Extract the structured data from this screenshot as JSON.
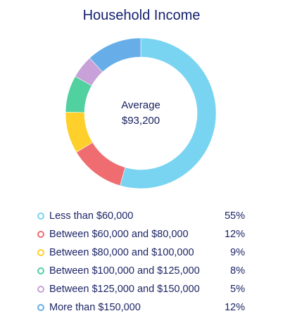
{
  "chart_data": {
    "type": "pie",
    "title": "Household Income",
    "center_label": {
      "title": "Average",
      "value": "$93,200"
    },
    "categories": [
      "Less than $60,000",
      "Between $60,000 and $80,000",
      "Between $80,000 and $100,000",
      "Between $100,000 and $125,000",
      "Between $125,000 and $150,000",
      "More than $150,000"
    ],
    "values": [
      55,
      12,
      9,
      8,
      5,
      12
    ],
    "value_labels": [
      "55%",
      "12%",
      "9%",
      "8%",
      "5%",
      "12%"
    ],
    "colors": [
      "#79d4f1",
      "#ef6d70",
      "#ffd02b",
      "#51d0a0",
      "#c7a1d8",
      "#67aee9"
    ],
    "legend": {
      "placement": "bottom"
    }
  }
}
